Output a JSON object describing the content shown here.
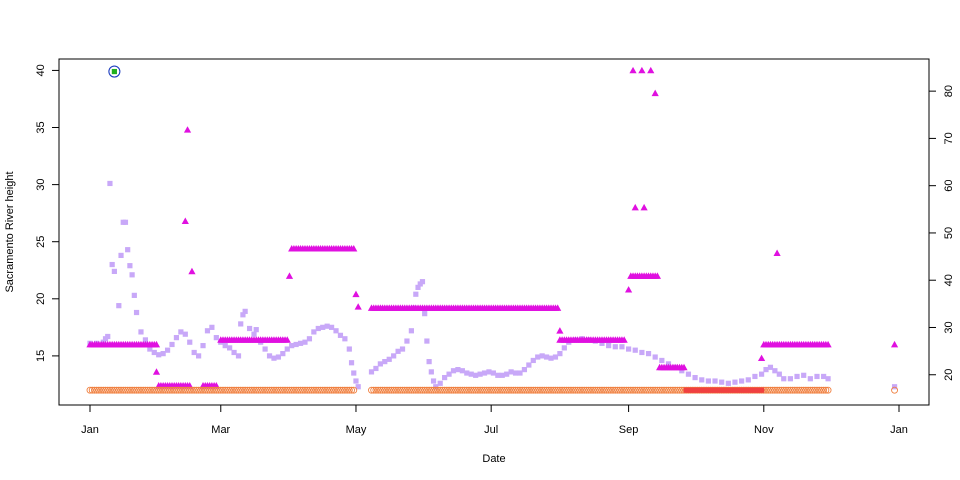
{
  "chart_data": {
    "type": "scatter",
    "title": "",
    "xlabel": "Date",
    "ylabel": "Sacramento River height",
    "y2label": "",
    "grid": false,
    "legend": "none",
    "x_range": [
      "2023-01-01",
      "2024-01-01"
    ],
    "ylim": [
      10.7,
      41.0
    ],
    "y2lim": [
      13.6,
      86.8
    ],
    "x_ticks": [
      {
        "date": "2023-01-01",
        "label": "Jan"
      },
      {
        "date": "2023-03-01",
        "label": "Mar"
      },
      {
        "date": "2023-05-01",
        "label": "May"
      },
      {
        "date": "2023-07-01",
        "label": "Jul"
      },
      {
        "date": "2023-09-01",
        "label": "Sep"
      },
      {
        "date": "2023-11-01",
        "label": "Nov"
      },
      {
        "date": "2024-01-01",
        "label": "Jan"
      }
    ],
    "y_ticks": [
      "15",
      "20",
      "25",
      "30",
      "35",
      "40"
    ],
    "y2_ticks": [
      "20",
      "30",
      "40",
      "50",
      "60",
      "70",
      "80"
    ],
    "colors": {
      "lavender_squares": "#c8a8f8",
      "magenta_triangles": "#e010e0",
      "orange_circles": "#f08040",
      "red_squares": "#f04040",
      "green_square": "#20b020",
      "blue_circle": "#2040c0"
    },
    "series": [
      {
        "marker": "square",
        "color_key": "lavender_squares",
        "axis": "left",
        "points": [
          [
            "2023-01-01",
            16.1
          ],
          [
            "2023-01-04",
            16.1
          ],
          [
            "2023-01-07",
            16.2
          ],
          [
            "2023-01-08",
            16.5
          ],
          [
            "2023-01-09",
            16.7
          ],
          [
            "2023-01-10",
            30.1
          ],
          [
            "2023-01-11",
            23.0
          ],
          [
            "2023-01-12",
            22.4
          ],
          [
            "2023-01-14",
            19.4
          ],
          [
            "2023-01-15",
            23.8
          ],
          [
            "2023-01-16",
            26.7
          ],
          [
            "2023-01-17",
            26.7
          ],
          [
            "2023-01-18",
            24.3
          ],
          [
            "2023-01-19",
            22.9
          ],
          [
            "2023-01-20",
            22.1
          ],
          [
            "2023-01-21",
            20.3
          ],
          [
            "2023-01-22",
            18.8
          ],
          [
            "2023-01-24",
            17.1
          ],
          [
            "2023-01-26",
            16.4
          ],
          [
            "2023-01-28",
            15.6
          ],
          [
            "2023-01-30",
            15.3
          ],
          [
            "2023-02-01",
            15.1
          ],
          [
            "2023-02-03",
            15.2
          ],
          [
            "2023-02-05",
            15.5
          ],
          [
            "2023-02-07",
            16.0
          ],
          [
            "2023-02-09",
            16.6
          ],
          [
            "2023-02-11",
            17.1
          ],
          [
            "2023-02-13",
            16.9
          ],
          [
            "2023-02-15",
            16.2
          ],
          [
            "2023-02-17",
            15.3
          ],
          [
            "2023-02-19",
            15.0
          ],
          [
            "2023-02-21",
            15.9
          ],
          [
            "2023-02-23",
            17.2
          ],
          [
            "2023-02-25",
            17.5
          ],
          [
            "2023-02-27",
            16.6
          ],
          [
            "2023-03-01",
            16.2
          ],
          [
            "2023-03-03",
            15.9
          ],
          [
            "2023-03-05",
            15.7
          ],
          [
            "2023-03-07",
            15.3
          ],
          [
            "2023-03-09",
            15.0
          ],
          [
            "2023-03-10",
            17.8
          ],
          [
            "2023-03-11",
            18.6
          ],
          [
            "2023-03-12",
            18.9
          ],
          [
            "2023-03-14",
            17.4
          ],
          [
            "2023-03-16",
            16.9
          ],
          [
            "2023-03-17",
            17.3
          ],
          [
            "2023-03-19",
            16.2
          ],
          [
            "2023-03-21",
            15.6
          ],
          [
            "2023-03-23",
            15.0
          ],
          [
            "2023-03-25",
            14.8
          ],
          [
            "2023-03-27",
            14.9
          ],
          [
            "2023-03-29",
            15.2
          ],
          [
            "2023-03-31",
            15.6
          ],
          [
            "2023-04-02",
            15.9
          ],
          [
            "2023-04-04",
            16.0
          ],
          [
            "2023-04-06",
            16.1
          ],
          [
            "2023-04-08",
            16.2
          ],
          [
            "2023-04-10",
            16.5
          ],
          [
            "2023-04-12",
            17.1
          ],
          [
            "2023-04-14",
            17.4
          ],
          [
            "2023-04-16",
            17.5
          ],
          [
            "2023-04-18",
            17.6
          ],
          [
            "2023-04-20",
            17.5
          ],
          [
            "2023-04-22",
            17.2
          ],
          [
            "2023-04-24",
            16.8
          ],
          [
            "2023-04-26",
            16.5
          ],
          [
            "2023-04-28",
            15.6
          ],
          [
            "2023-04-29",
            14.4
          ],
          [
            "2023-04-30",
            13.5
          ],
          [
            "2023-05-01",
            12.8
          ],
          [
            "2023-05-02",
            12.3
          ],
          [
            "2023-05-08",
            13.6
          ],
          [
            "2023-05-10",
            13.9
          ],
          [
            "2023-05-12",
            14.3
          ],
          [
            "2023-05-14",
            14.5
          ],
          [
            "2023-05-16",
            14.7
          ],
          [
            "2023-05-18",
            15.0
          ],
          [
            "2023-05-20",
            15.4
          ],
          [
            "2023-05-22",
            15.6
          ],
          [
            "2023-05-24",
            16.3
          ],
          [
            "2023-05-26",
            17.2
          ],
          [
            "2023-05-27",
            19.2
          ],
          [
            "2023-05-28",
            20.4
          ],
          [
            "2023-05-29",
            21.0
          ],
          [
            "2023-05-30",
            21.3
          ],
          [
            "2023-05-31",
            21.5
          ],
          [
            "2023-06-01",
            18.7
          ],
          [
            "2023-06-02",
            16.3
          ],
          [
            "2023-06-03",
            14.5
          ],
          [
            "2023-06-04",
            13.6
          ],
          [
            "2023-06-05",
            12.8
          ],
          [
            "2023-06-06",
            12.3
          ],
          [
            "2023-06-08",
            12.6
          ],
          [
            "2023-06-10",
            13.1
          ],
          [
            "2023-06-12",
            13.4
          ],
          [
            "2023-06-14",
            13.7
          ],
          [
            "2023-06-16",
            13.8
          ],
          [
            "2023-06-18",
            13.7
          ],
          [
            "2023-06-20",
            13.5
          ],
          [
            "2023-06-22",
            13.4
          ],
          [
            "2023-06-24",
            13.3
          ],
          [
            "2023-06-26",
            13.4
          ],
          [
            "2023-06-28",
            13.5
          ],
          [
            "2023-06-30",
            13.6
          ],
          [
            "2023-07-02",
            13.5
          ],
          [
            "2023-07-04",
            13.3
          ],
          [
            "2023-07-06",
            13.3
          ],
          [
            "2023-07-08",
            13.4
          ],
          [
            "2023-07-10",
            13.6
          ],
          [
            "2023-07-12",
            13.5
          ],
          [
            "2023-07-14",
            13.5
          ],
          [
            "2023-07-16",
            13.8
          ],
          [
            "2023-07-18",
            14.2
          ],
          [
            "2023-07-20",
            14.6
          ],
          [
            "2023-07-22",
            14.9
          ],
          [
            "2023-07-24",
            15.0
          ],
          [
            "2023-07-26",
            14.9
          ],
          [
            "2023-07-28",
            14.8
          ],
          [
            "2023-07-30",
            14.9
          ],
          [
            "2023-08-01",
            15.2
          ],
          [
            "2023-08-03",
            15.7
          ],
          [
            "2023-08-05",
            16.2
          ],
          [
            "2023-08-08",
            16.4
          ],
          [
            "2023-08-11",
            16.5
          ],
          [
            "2023-08-14",
            16.4
          ],
          [
            "2023-08-17",
            16.3
          ],
          [
            "2023-08-20",
            16.1
          ],
          [
            "2023-08-23",
            15.9
          ],
          [
            "2023-08-26",
            15.8
          ],
          [
            "2023-08-29",
            15.8
          ],
          [
            "2023-09-01",
            15.6
          ],
          [
            "2023-09-04",
            15.5
          ],
          [
            "2023-09-07",
            15.3
          ],
          [
            "2023-09-10",
            15.2
          ],
          [
            "2023-09-13",
            14.9
          ],
          [
            "2023-09-16",
            14.6
          ],
          [
            "2023-09-19",
            14.3
          ],
          [
            "2023-09-22",
            14.0
          ],
          [
            "2023-09-25",
            13.7
          ],
          [
            "2023-09-28",
            13.4
          ],
          [
            "2023-10-01",
            13.1
          ],
          [
            "2023-10-04",
            12.9
          ],
          [
            "2023-10-07",
            12.8
          ],
          [
            "2023-10-10",
            12.8
          ],
          [
            "2023-10-13",
            12.7
          ],
          [
            "2023-10-16",
            12.6
          ],
          [
            "2023-10-19",
            12.7
          ],
          [
            "2023-10-22",
            12.8
          ],
          [
            "2023-10-25",
            12.9
          ],
          [
            "2023-10-28",
            13.2
          ],
          [
            "2023-10-31",
            13.4
          ],
          [
            "2023-11-02",
            13.8
          ],
          [
            "2023-11-04",
            14.0
          ],
          [
            "2023-11-06",
            13.7
          ],
          [
            "2023-11-08",
            13.4
          ],
          [
            "2023-11-10",
            13.0
          ],
          [
            "2023-11-13",
            13.0
          ],
          [
            "2023-11-16",
            13.2
          ],
          [
            "2023-11-19",
            13.3
          ],
          [
            "2023-11-22",
            13.0
          ],
          [
            "2023-11-25",
            13.2
          ],
          [
            "2023-11-28",
            13.2
          ],
          [
            "2023-11-30",
            13.0
          ],
          [
            "2023-12-30",
            12.3
          ]
        ]
      },
      {
        "marker": "triangle",
        "color_key": "magenta_triangles",
        "axis": "left",
        "segments": [
          {
            "from": "2023-01-01",
            "to": "2023-01-08",
            "y": 16.0
          },
          {
            "from": "2023-01-09",
            "to": "2023-01-31",
            "y": 16.0
          },
          {
            "from": "2023-02-01",
            "to": "2023-02-15",
            "y": 12.4
          },
          {
            "from": "2023-02-21",
            "to": "2023-02-27",
            "y": 12.4
          },
          {
            "from": "2023-03-01",
            "to": "2023-03-31",
            "y": 16.4
          },
          {
            "from": "2023-04-02",
            "to": "2023-04-30",
            "y": 24.4
          },
          {
            "from": "2023-05-08",
            "to": "2023-07-31",
            "y": 19.2
          },
          {
            "from": "2023-08-01",
            "to": "2023-08-30",
            "y": 16.4
          },
          {
            "from": "2023-09-02",
            "to": "2023-09-14",
            "y": 22.0
          },
          {
            "from": "2023-09-15",
            "to": "2023-09-26",
            "y": 14.0
          },
          {
            "from": "2023-11-01",
            "to": "2023-11-30",
            "y": 16.0
          }
        ],
        "points": [
          [
            "2023-01-31",
            13.6
          ],
          [
            "2023-02-13",
            26.8
          ],
          [
            "2023-02-14",
            34.8
          ],
          [
            "2023-02-16",
            22.4
          ],
          [
            "2023-04-01",
            22.0
          ],
          [
            "2023-05-01",
            20.4
          ],
          [
            "2023-05-02",
            19.3
          ],
          [
            "2023-08-01",
            17.2
          ],
          [
            "2023-09-01",
            20.8
          ],
          [
            "2023-09-03",
            40.0
          ],
          [
            "2023-09-04",
            28.0
          ],
          [
            "2023-09-07",
            40.0
          ],
          [
            "2023-09-08",
            28.0
          ],
          [
            "2023-09-11",
            40.0
          ],
          [
            "2023-09-13",
            38.0
          ],
          [
            "2023-10-31",
            14.8
          ],
          [
            "2023-11-07",
            24.0
          ],
          [
            "2023-12-30",
            16.0
          ]
        ]
      },
      {
        "marker": "circle",
        "color_key": "orange_circles",
        "axis": "left",
        "segments": [
          {
            "from": "2023-01-01",
            "to": "2023-01-11",
            "y": 12.0
          },
          {
            "from": "2023-01-12",
            "to": "2023-04-30",
            "y": 12.0
          },
          {
            "from": "2023-05-08",
            "to": "2023-11-30",
            "y": 12.0
          }
        ],
        "points": [
          [
            "2023-12-30",
            12.0
          ]
        ]
      },
      {
        "marker": "square",
        "color_key": "red_squares",
        "axis": "left",
        "segments": [
          {
            "from": "2023-09-27",
            "to": "2023-10-31",
            "y": 12.0
          }
        ]
      },
      {
        "marker": "square",
        "color_key": "green_square",
        "axis": "left",
        "points": [
          [
            "2023-01-12",
            39.9
          ]
        ]
      },
      {
        "marker": "circle-large",
        "color_key": "blue_circle",
        "axis": "left",
        "points": [
          [
            "2023-01-12",
            39.9
          ]
        ]
      }
    ]
  }
}
